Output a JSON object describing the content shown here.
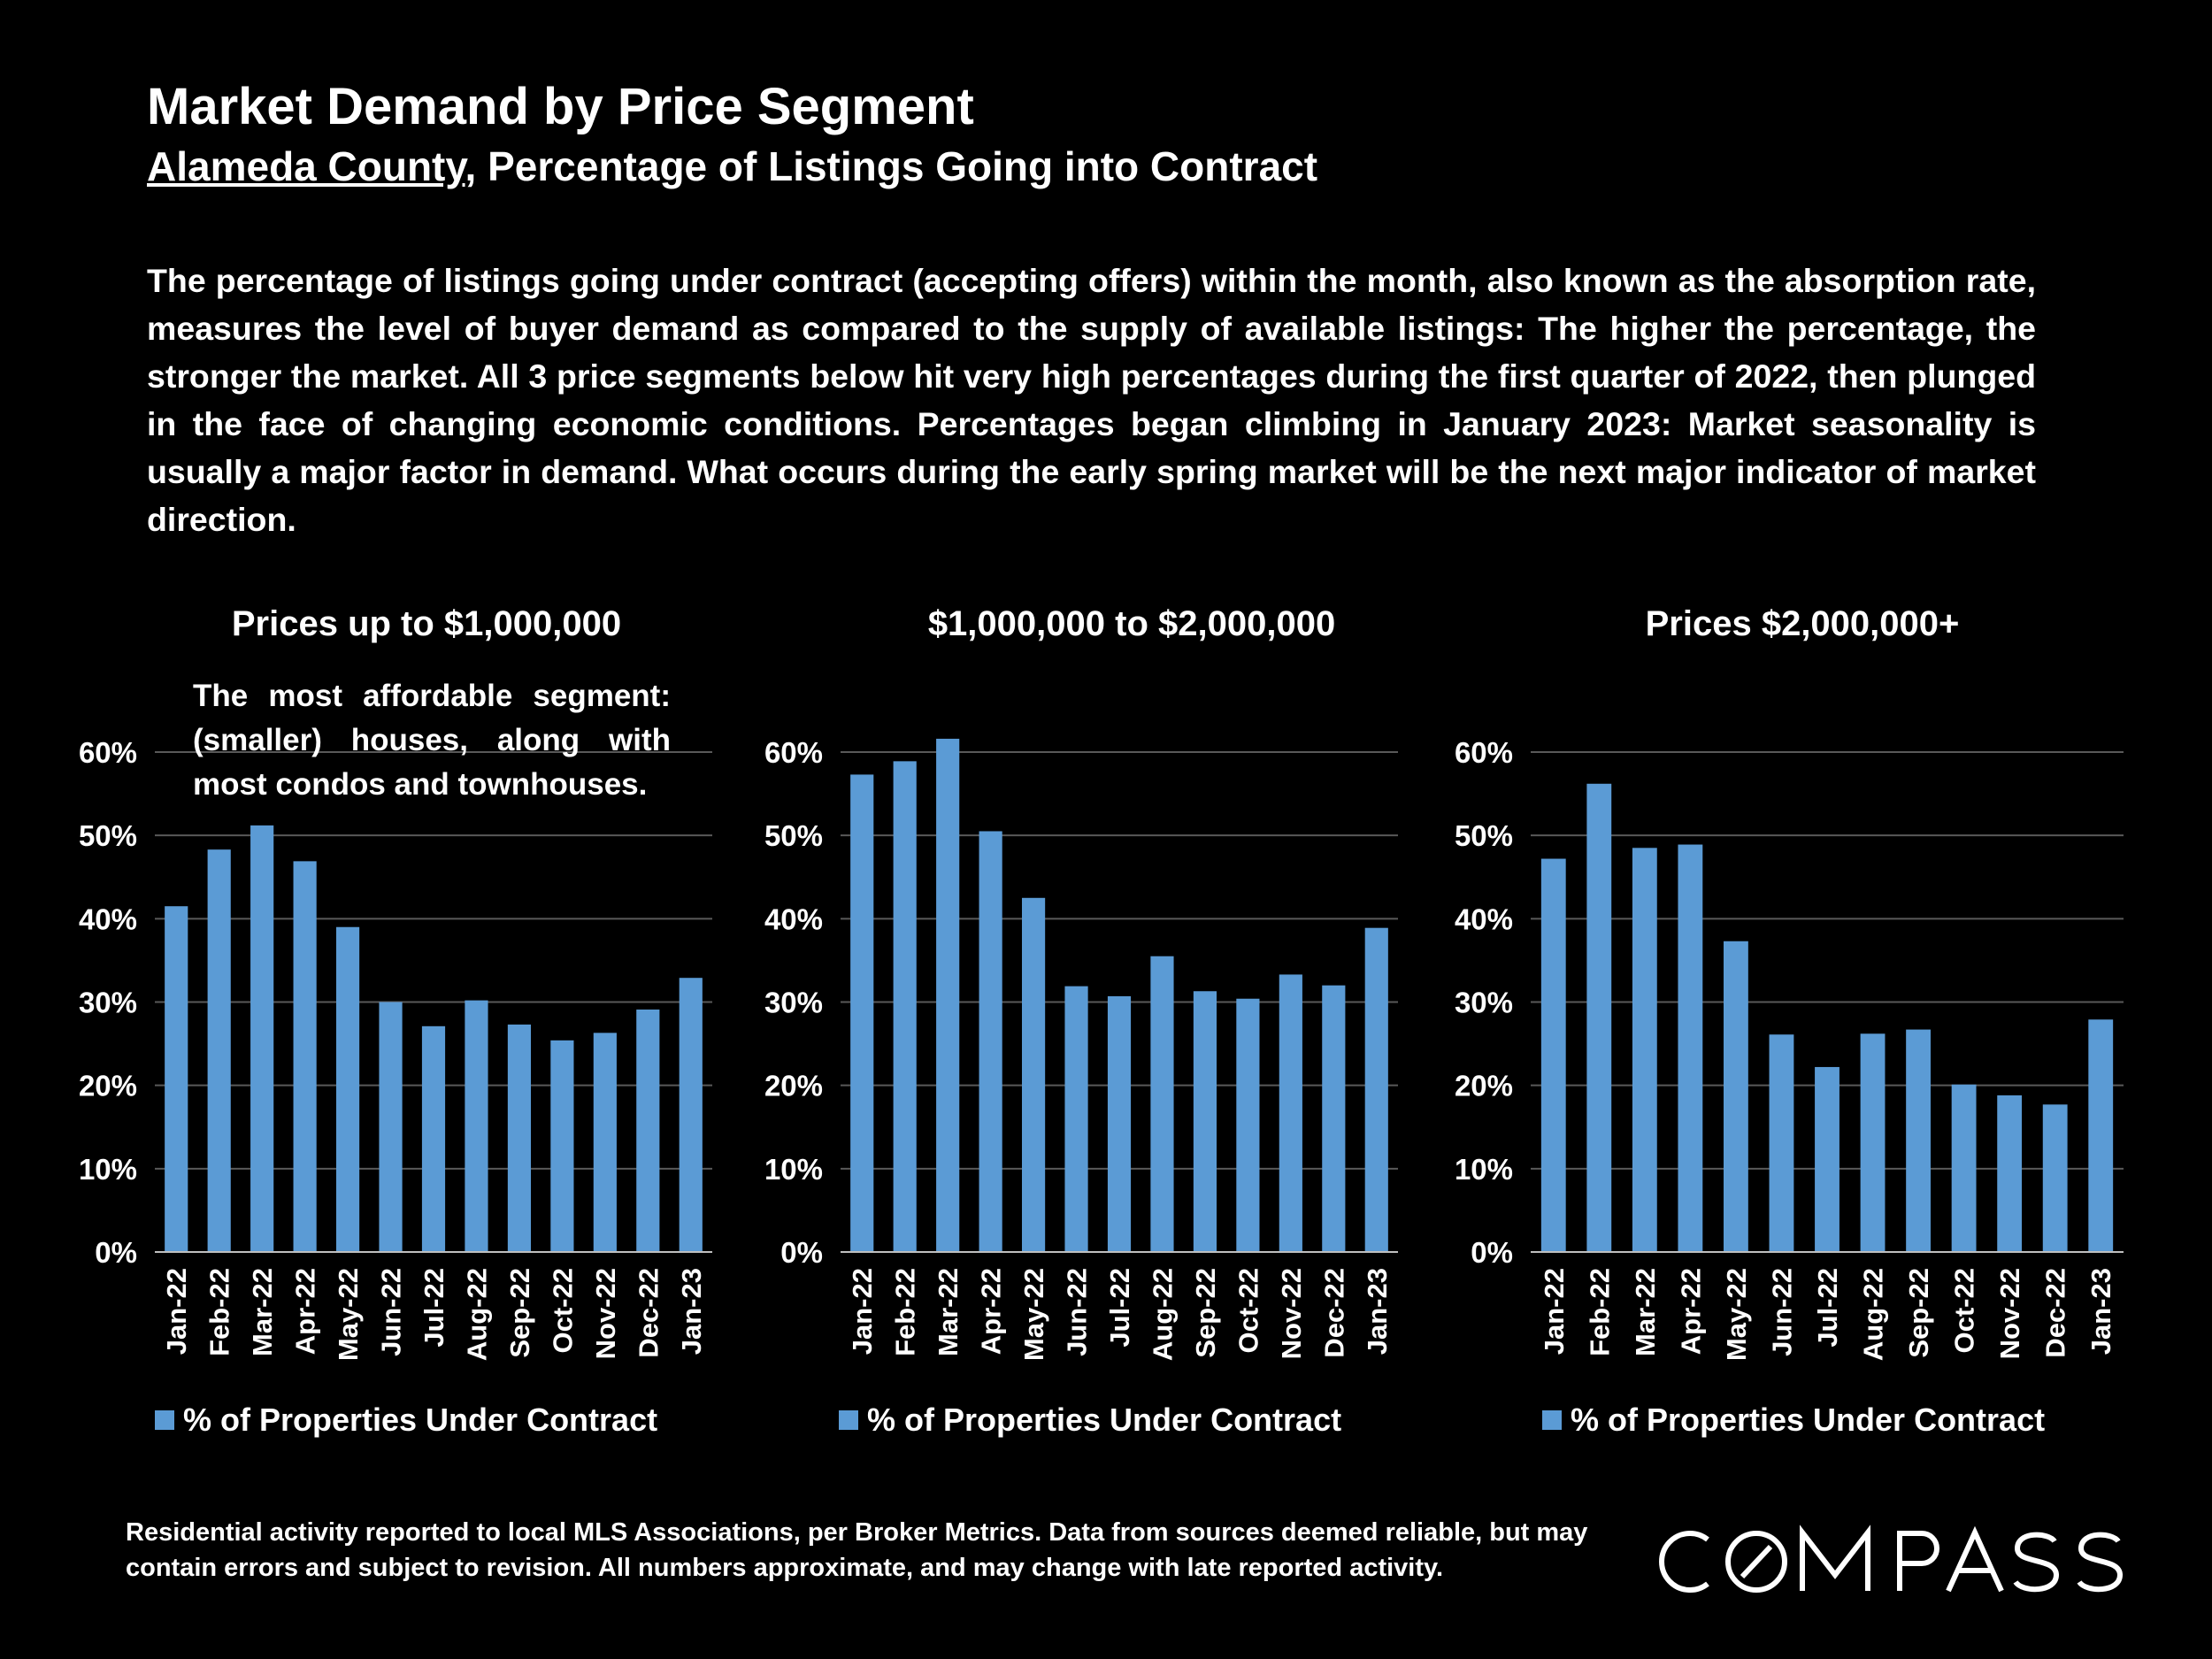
{
  "header": {
    "title": "Market Demand by Price Segment",
    "subtitle_county": "Alameda County",
    "subtitle_rest": ", Percentage of Listings Going into Contract"
  },
  "description": "The percentage of listings going under contract (accepting offers) within the month, also known as the absorption rate, measures the level of buyer demand as compared to the supply of available listings:  The higher the percentage, the stronger the market. All 3 price segments below hit very high percentages during the first quarter of 2022, then plunged in the face of changing economic conditions. Percentages began climbing in January 2023: Market seasonality is usually a major factor in demand. What occurs during the early spring market will be the next major indicator of market direction.",
  "annotation": "The most affordable segment: (smaller) houses, along with most condos and townhouses.",
  "footnote": "Residential activity reported to local MLS Associations, per Broker Metrics. Data from sources deemed reliable, but may contain errors and subject to revision. All numbers approximate, and may change with late reported activity.",
  "logo": {
    "text": "COMPASS"
  },
  "colors": {
    "bar": "#5b9bd5",
    "background": "#000000",
    "gridline": "#595959",
    "text": "#ffffff"
  },
  "chart_data": [
    {
      "type": "bar",
      "title": "Prices up to $1,000,000",
      "categories": [
        "Jan-22",
        "Feb-22",
        "Mar-22",
        "Apr-22",
        "May-22",
        "Jun-22",
        "Jul-22",
        "Aug-22",
        "Sep-22",
        "Oct-22",
        "Nov-22",
        "Dec-22",
        "Jan-23"
      ],
      "series": [
        {
          "name": "% of Properties Under Contract",
          "values": [
            41.5,
            48.3,
            51.2,
            46.9,
            39.0,
            30.0,
            27.1,
            30.2,
            27.3,
            25.4,
            26.3,
            29.1,
            32.9
          ]
        }
      ],
      "ylim": [
        0,
        60
      ],
      "yticks": [
        "0%",
        "10%",
        "20%",
        "30%",
        "40%",
        "50%",
        "60%"
      ],
      "grid": true,
      "legend_position": "bottom"
    },
    {
      "type": "bar",
      "title": "$1,000,000 to $2,000,000",
      "categories": [
        "Jan-22",
        "Feb-22",
        "Mar-22",
        "Apr-22",
        "May-22",
        "Jun-22",
        "Jul-22",
        "Aug-22",
        "Sep-22",
        "Oct-22",
        "Nov-22",
        "Dec-22",
        "Jan-23"
      ],
      "series": [
        {
          "name": "% of Properties Under Contract",
          "values": [
            57.3,
            58.9,
            61.6,
            50.5,
            42.5,
            31.9,
            30.7,
            35.5,
            31.3,
            30.4,
            33.3,
            32.0,
            38.9
          ]
        }
      ],
      "ylim": [
        0,
        60
      ],
      "yticks": [
        "0%",
        "10%",
        "20%",
        "30%",
        "40%",
        "50%",
        "60%"
      ],
      "grid": true,
      "legend_position": "bottom"
    },
    {
      "type": "bar",
      "title": "Prices $2,000,000+",
      "categories": [
        "Jan-22",
        "Feb-22",
        "Mar-22",
        "Apr-22",
        "May-22",
        "Jun-22",
        "Jul-22",
        "Aug-22",
        "Sep-22",
        "Oct-22",
        "Nov-22",
        "Dec-22",
        "Jan-23"
      ],
      "series": [
        {
          "name": "% of Properties Under Contract",
          "values": [
            47.2,
            56.2,
            48.5,
            48.9,
            37.3,
            26.1,
            22.2,
            26.2,
            26.7,
            20.1,
            18.8,
            17.7,
            27.9
          ]
        }
      ],
      "ylim": [
        0,
        60
      ],
      "yticks": [
        "0%",
        "10%",
        "20%",
        "30%",
        "40%",
        "50%",
        "60%"
      ],
      "grid": true,
      "legend_position": "bottom"
    }
  ]
}
